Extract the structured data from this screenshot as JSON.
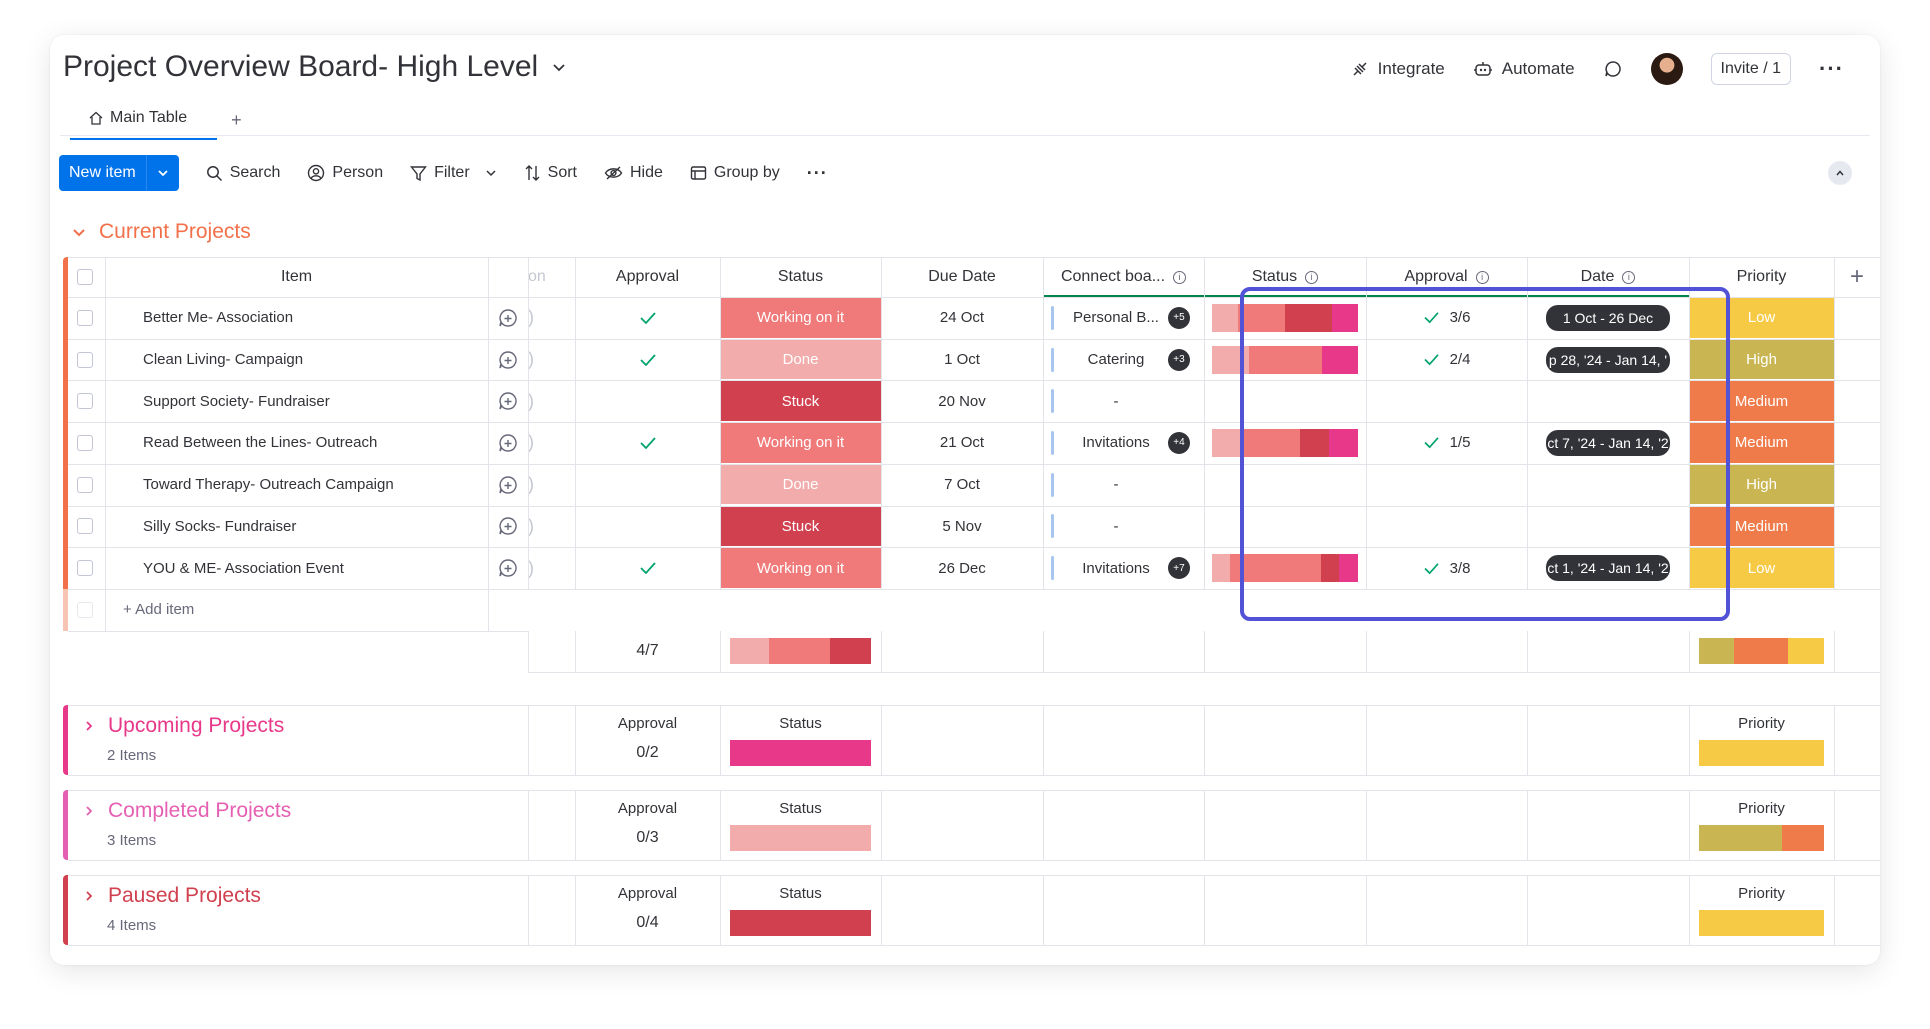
{
  "header": {
    "title": "Project Overview Board- High Level",
    "integrate": "Integrate",
    "automate": "Automate",
    "invite": "Invite / 1"
  },
  "tabs": {
    "main": "Main Table",
    "add": "+"
  },
  "toolbar": {
    "new_item": "New item",
    "search": "Search",
    "person": "Person",
    "filter": "Filter",
    "sort": "Sort",
    "hide": "Hide",
    "group_by": "Group by"
  },
  "columns": {
    "item": "Item",
    "person": "on",
    "approval": "Approval",
    "status": "Status",
    "due_date": "Due Date",
    "connect": "Connect boa...",
    "status2": "Status",
    "approval2": "Approval",
    "date": "Date",
    "priority": "Priority"
  },
  "colors": {
    "working": "#f07a7a",
    "done": "#f2acac",
    "stuck": "#d0404e",
    "low": "#f7ca45",
    "high": "#c9b653",
    "medium": "#ef7a4a",
    "orange": "#f2704a",
    "pink": "#e8388a",
    "magenta": "#e55fb3",
    "crimson": "#d0404e"
  },
  "current": {
    "title": "Current Projects",
    "add_item": "+ Add item",
    "approval_summary": "4/7",
    "rows": [
      {
        "name": "Better Me- Association",
        "approved": true,
        "status": "Working on it",
        "due": "24 Oct",
        "connect": "Personal B...",
        "badge": "+5",
        "approval2": "3/6",
        "date": "1 Oct - 26 Dec",
        "priority": "Low"
      },
      {
        "name": "Clean Living- Campaign",
        "approved": true,
        "status": "Done",
        "due": "1 Oct",
        "connect": "Catering",
        "badge": "+3",
        "approval2": "2/4",
        "date": "p 28, '24 - Jan 14, '",
        "priority": "High"
      },
      {
        "name": "Support Society- Fundraiser",
        "approved": false,
        "status": "Stuck",
        "due": "20 Nov",
        "connect": "-",
        "badge": "",
        "approval2": "",
        "date": "",
        "priority": "Medium"
      },
      {
        "name": "Read Between the Lines- Outreach",
        "approved": true,
        "status": "Working on it",
        "due": "21 Oct",
        "connect": "Invitations",
        "badge": "+4",
        "approval2": "1/5",
        "date": "ct 7, '24 - Jan 14, '2",
        "priority": "Medium"
      },
      {
        "name": "Toward Therapy- Outreach Campaign",
        "approved": false,
        "status": "Done",
        "due": "7 Oct",
        "connect": "-",
        "badge": "",
        "approval2": "",
        "date": "",
        "priority": "High"
      },
      {
        "name": "Silly Socks- Fundraiser",
        "approved": false,
        "status": "Stuck",
        "due": "5 Nov",
        "connect": "-",
        "badge": "",
        "approval2": "",
        "date": "",
        "priority": "Medium"
      },
      {
        "name": "YOU & ME- Association Event",
        "approved": true,
        "status": "Working on it",
        "due": "26 Dec",
        "connect": "Invitations",
        "badge": "+7",
        "approval2": "3/8",
        "date": "ct 1, '24 - Jan 14, '2",
        "priority": "Low"
      }
    ]
  },
  "groups": [
    {
      "title": "Upcoming Projects",
      "count": "2 Items",
      "approval": "0/2",
      "approval_label": "Approval",
      "status_label": "Status",
      "priority_label": "Priority"
    },
    {
      "title": "Completed Projects",
      "count": "3 Items",
      "approval": "0/3",
      "approval_label": "Approval",
      "status_label": "Status",
      "priority_label": "Priority"
    },
    {
      "title": "Paused Projects",
      "count": "4 Items",
      "approval": "0/4",
      "approval_label": "Approval",
      "status_label": "Status",
      "priority_label": "Priority"
    }
  ]
}
